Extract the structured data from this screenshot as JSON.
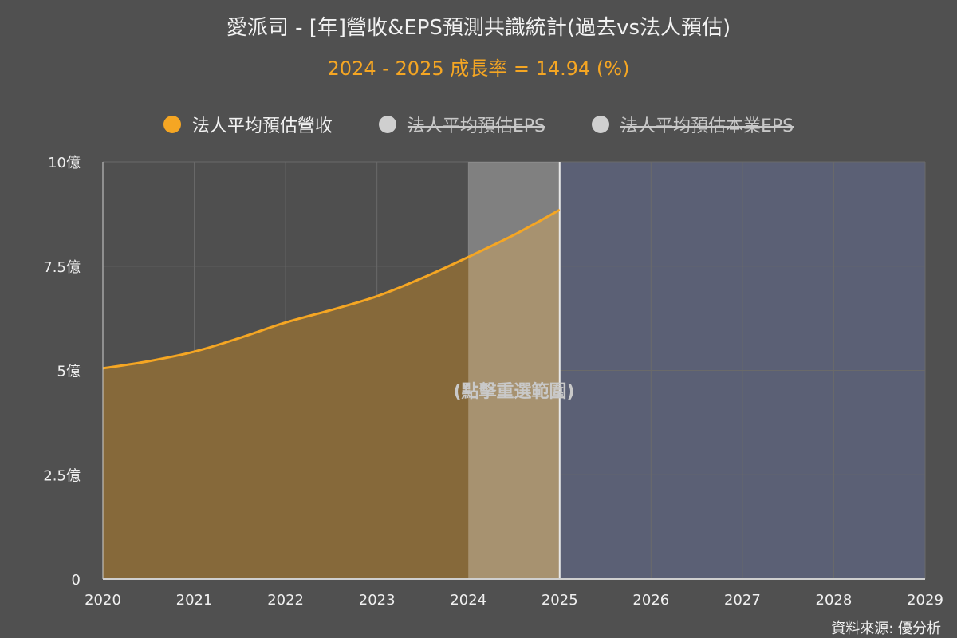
{
  "title": "愛派司 - [年]營收&EPS預測共識統計(過去vs法人預估)",
  "subtitle": "2024 - 2025 成長率 = 14.94 (%)",
  "legend": [
    {
      "label": "法人平均預估營收",
      "color": "#f5a623",
      "active": true
    },
    {
      "label": "法人平均預估EPS",
      "color": "#cfcfcf",
      "active": false
    },
    {
      "label": "法人平均預估本業EPS",
      "color": "#cfcfcf",
      "active": false
    }
  ],
  "overlay_text": "(點擊重選範圍)",
  "source": "資料來源: 優分析",
  "colors": {
    "line": "#f5a623",
    "area": "#86693a",
    "selection": "#a3906e",
    "forecast_bg": "#5b6075",
    "plot_bg": "#4f4f4f",
    "grid": "#6a6a6a"
  },
  "chart_data": {
    "type": "area",
    "x": [
      2020,
      2020.5,
      2021,
      2021.5,
      2022,
      2022.5,
      2023,
      2023.5,
      2024,
      2024.5,
      2025
    ],
    "series": [
      {
        "name": "法人平均預估營收",
        "values": [
          5.05,
          5.22,
          5.45,
          5.78,
          6.15,
          6.45,
          6.78,
          7.22,
          7.72,
          8.25,
          8.85
        ]
      }
    ],
    "xlim": [
      2020,
      2029
    ],
    "x_ticks": [
      "2020",
      "2021",
      "2022",
      "2023",
      "2024",
      "2025",
      "2026",
      "2027",
      "2028",
      "2029"
    ],
    "ylim": [
      0,
      10
    ],
    "y_ticks": [
      {
        "value": 0,
        "label": "0"
      },
      {
        "value": 2.5,
        "label": "2.5億"
      },
      {
        "value": 5,
        "label": "5億"
      },
      {
        "value": 7.5,
        "label": "7.5億"
      },
      {
        "value": 10,
        "label": "10億"
      }
    ],
    "selected_range": [
      2024,
      2025
    ],
    "forecast_range": [
      2025,
      2029
    ],
    "grid": true
  }
}
